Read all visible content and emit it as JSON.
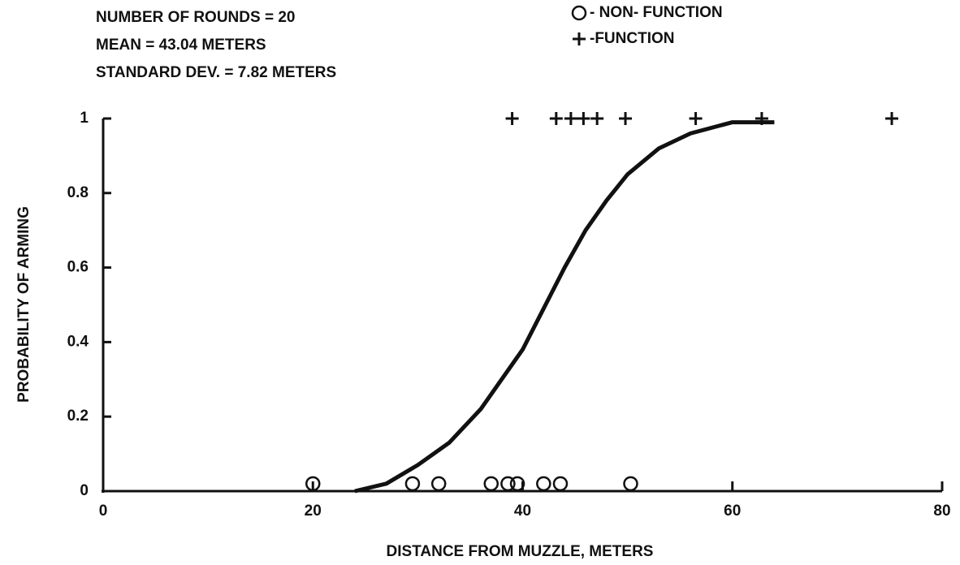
{
  "chart_data": {
    "type": "scatter",
    "annotations": [
      "NUMBER OF ROUNDS  =  20",
      "MEAN   = 43.04 METERS",
      "STANDARD DEV.  =  7.82 METERS"
    ],
    "xlabel": "DISTANCE FROM MUZZLE, METERS",
    "ylabel": "PROBABILITY OF ARMING",
    "xlim": [
      0,
      80
    ],
    "xticks": [
      0,
      20,
      40,
      60,
      80
    ],
    "ylim": [
      0,
      1
    ],
    "yticks": [
      0,
      0.2,
      0.4,
      0.6,
      0.8,
      1
    ],
    "series": [
      {
        "name": "- NON- FUNCTION",
        "marker": "circle",
        "color": "#111111",
        "x": [
          20,
          29.5,
          32,
          37,
          38.6,
          39.5,
          42,
          43.6,
          50.3
        ],
        "values": [
          0.02,
          0.02,
          0.02,
          0.02,
          0.02,
          0.02,
          0.02,
          0.02,
          0.02
        ]
      },
      {
        "name": "-FUNCTION",
        "marker": "plus",
        "color": "#111111",
        "x": [
          39,
          43.2,
          44.6,
          45.8,
          47.1,
          49.8,
          56.5,
          62.8,
          75.2
        ],
        "values": [
          1,
          1,
          1,
          1,
          1,
          1,
          1,
          1,
          1
        ]
      },
      {
        "marker": "line",
        "color": "#111111",
        "x": [
          24,
          27,
          30,
          33,
          36,
          38,
          40,
          42,
          44,
          46,
          48,
          50,
          53,
          56,
          60,
          64
        ],
        "values": [
          0,
          0.02,
          0.07,
          0.13,
          0.22,
          0.3,
          0.38,
          0.49,
          0.6,
          0.7,
          0.78,
          0.85,
          0.92,
          0.96,
          0.99,
          0.99
        ]
      }
    ]
  }
}
